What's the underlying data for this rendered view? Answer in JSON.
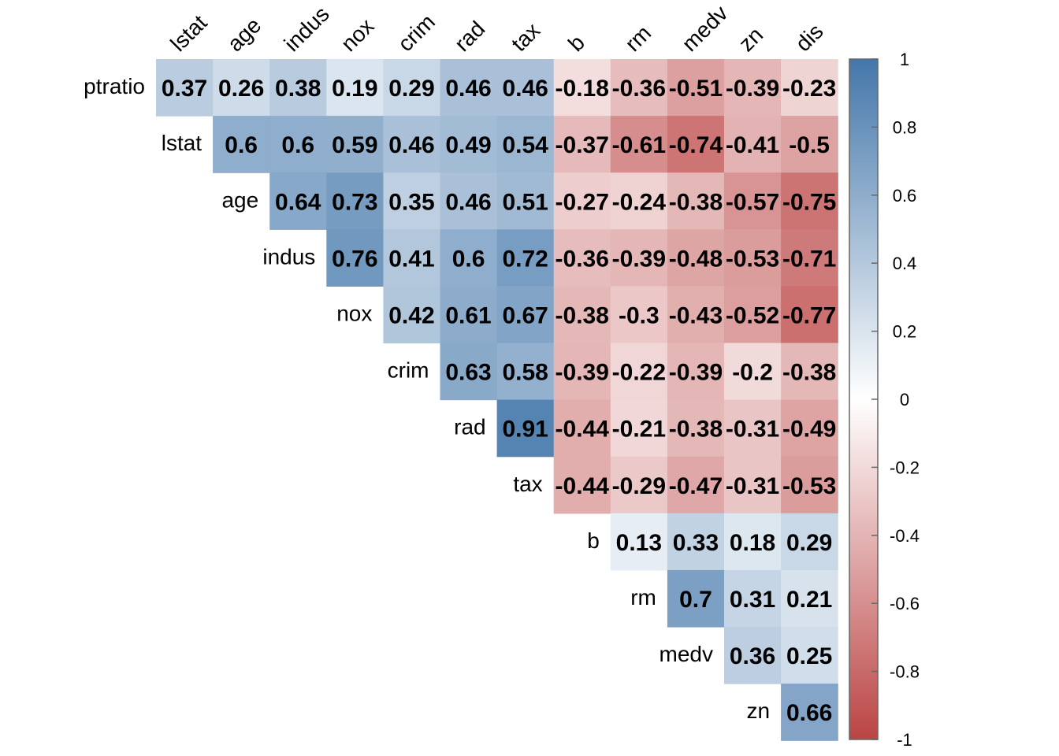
{
  "chart_data": {
    "type": "heatmap",
    "title": "",
    "variant": "upper-triangle correlation matrix",
    "rows": [
      "ptratio",
      "lstat",
      "age",
      "indus",
      "nox",
      "crim",
      "rad",
      "tax",
      "b",
      "rm",
      "medv",
      "zn"
    ],
    "columns": [
      "lstat",
      "age",
      "indus",
      "nox",
      "crim",
      "rad",
      "tax",
      "b",
      "rm",
      "medv",
      "zn",
      "dis"
    ],
    "cells": [
      {
        "row": "ptratio",
        "col": "lstat",
        "value": 0.37
      },
      {
        "row": "ptratio",
        "col": "age",
        "value": 0.26
      },
      {
        "row": "ptratio",
        "col": "indus",
        "value": 0.38
      },
      {
        "row": "ptratio",
        "col": "nox",
        "value": 0.19
      },
      {
        "row": "ptratio",
        "col": "crim",
        "value": 0.29
      },
      {
        "row": "ptratio",
        "col": "rad",
        "value": 0.46
      },
      {
        "row": "ptratio",
        "col": "tax",
        "value": 0.46
      },
      {
        "row": "ptratio",
        "col": "b",
        "value": -0.18
      },
      {
        "row": "ptratio",
        "col": "rm",
        "value": -0.36
      },
      {
        "row": "ptratio",
        "col": "medv",
        "value": -0.51
      },
      {
        "row": "ptratio",
        "col": "zn",
        "value": -0.39
      },
      {
        "row": "ptratio",
        "col": "dis",
        "value": -0.23
      },
      {
        "row": "lstat",
        "col": "age",
        "value": 0.6
      },
      {
        "row": "lstat",
        "col": "indus",
        "value": 0.6
      },
      {
        "row": "lstat",
        "col": "nox",
        "value": 0.59
      },
      {
        "row": "lstat",
        "col": "crim",
        "value": 0.46
      },
      {
        "row": "lstat",
        "col": "rad",
        "value": 0.49
      },
      {
        "row": "lstat",
        "col": "tax",
        "value": 0.54
      },
      {
        "row": "lstat",
        "col": "b",
        "value": -0.37
      },
      {
        "row": "lstat",
        "col": "rm",
        "value": -0.61
      },
      {
        "row": "lstat",
        "col": "medv",
        "value": -0.74
      },
      {
        "row": "lstat",
        "col": "zn",
        "value": -0.41
      },
      {
        "row": "lstat",
        "col": "dis",
        "value": -0.5
      },
      {
        "row": "age",
        "col": "indus",
        "value": 0.64
      },
      {
        "row": "age",
        "col": "nox",
        "value": 0.73
      },
      {
        "row": "age",
        "col": "crim",
        "value": 0.35
      },
      {
        "row": "age",
        "col": "rad",
        "value": 0.46
      },
      {
        "row": "age",
        "col": "tax",
        "value": 0.51
      },
      {
        "row": "age",
        "col": "b",
        "value": -0.27
      },
      {
        "row": "age",
        "col": "rm",
        "value": -0.24
      },
      {
        "row": "age",
        "col": "medv",
        "value": -0.38
      },
      {
        "row": "age",
        "col": "zn",
        "value": -0.57
      },
      {
        "row": "age",
        "col": "dis",
        "value": -0.75
      },
      {
        "row": "indus",
        "col": "nox",
        "value": 0.76
      },
      {
        "row": "indus",
        "col": "crim",
        "value": 0.41
      },
      {
        "row": "indus",
        "col": "rad",
        "value": 0.6
      },
      {
        "row": "indus",
        "col": "tax",
        "value": 0.72
      },
      {
        "row": "indus",
        "col": "b",
        "value": -0.36
      },
      {
        "row": "indus",
        "col": "rm",
        "value": -0.39
      },
      {
        "row": "indus",
        "col": "medv",
        "value": -0.48
      },
      {
        "row": "indus",
        "col": "zn",
        "value": -0.53
      },
      {
        "row": "indus",
        "col": "dis",
        "value": -0.71
      },
      {
        "row": "nox",
        "col": "crim",
        "value": 0.42
      },
      {
        "row": "nox",
        "col": "rad",
        "value": 0.61
      },
      {
        "row": "nox",
        "col": "tax",
        "value": 0.67
      },
      {
        "row": "nox",
        "col": "b",
        "value": -0.38
      },
      {
        "row": "nox",
        "col": "rm",
        "value": -0.3
      },
      {
        "row": "nox",
        "col": "medv",
        "value": -0.43
      },
      {
        "row": "nox",
        "col": "zn",
        "value": -0.52
      },
      {
        "row": "nox",
        "col": "dis",
        "value": -0.77
      },
      {
        "row": "crim",
        "col": "rad",
        "value": 0.63
      },
      {
        "row": "crim",
        "col": "tax",
        "value": 0.58
      },
      {
        "row": "crim",
        "col": "b",
        "value": -0.39
      },
      {
        "row": "crim",
        "col": "rm",
        "value": -0.22
      },
      {
        "row": "crim",
        "col": "medv",
        "value": -0.39
      },
      {
        "row": "crim",
        "col": "zn",
        "value": -0.2
      },
      {
        "row": "crim",
        "col": "dis",
        "value": -0.38
      },
      {
        "row": "rad",
        "col": "tax",
        "value": 0.91
      },
      {
        "row": "rad",
        "col": "b",
        "value": -0.44
      },
      {
        "row": "rad",
        "col": "rm",
        "value": -0.21
      },
      {
        "row": "rad",
        "col": "medv",
        "value": -0.38
      },
      {
        "row": "rad",
        "col": "zn",
        "value": -0.31
      },
      {
        "row": "rad",
        "col": "dis",
        "value": -0.49
      },
      {
        "row": "tax",
        "col": "b",
        "value": -0.44
      },
      {
        "row": "tax",
        "col": "rm",
        "value": -0.29
      },
      {
        "row": "tax",
        "col": "medv",
        "value": -0.47
      },
      {
        "row": "tax",
        "col": "zn",
        "value": -0.31
      },
      {
        "row": "tax",
        "col": "dis",
        "value": -0.53
      },
      {
        "row": "b",
        "col": "rm",
        "value": 0.13
      },
      {
        "row": "b",
        "col": "medv",
        "value": 0.33
      },
      {
        "row": "b",
        "col": "zn",
        "value": 0.18
      },
      {
        "row": "b",
        "col": "dis",
        "value": 0.29
      },
      {
        "row": "rm",
        "col": "medv",
        "value": 0.7
      },
      {
        "row": "rm",
        "col": "zn",
        "value": 0.31
      },
      {
        "row": "rm",
        "col": "dis",
        "value": 0.21
      },
      {
        "row": "medv",
        "col": "zn",
        "value": 0.36
      },
      {
        "row": "medv",
        "col": "dis",
        "value": 0.25
      },
      {
        "row": "zn",
        "col": "dis",
        "value": 0.66
      }
    ],
    "colorbar": {
      "range": [
        -1,
        1
      ],
      "ticks": [
        "1",
        "0.8",
        "0.6",
        "0.4",
        "0.2",
        "0",
        "-0.2",
        "-0.4",
        "-0.6",
        "-0.8",
        "-1"
      ],
      "tick_values": [
        1,
        0.8,
        0.6,
        0.4,
        0.2,
        0,
        -0.2,
        -0.4,
        -0.6,
        -0.8,
        -1
      ],
      "colors": {
        "negative": "#BB4444",
        "mid": "#FFFFFF",
        "positive": "#4477AA"
      }
    },
    "grid": false,
    "legend_placement": "right"
  }
}
